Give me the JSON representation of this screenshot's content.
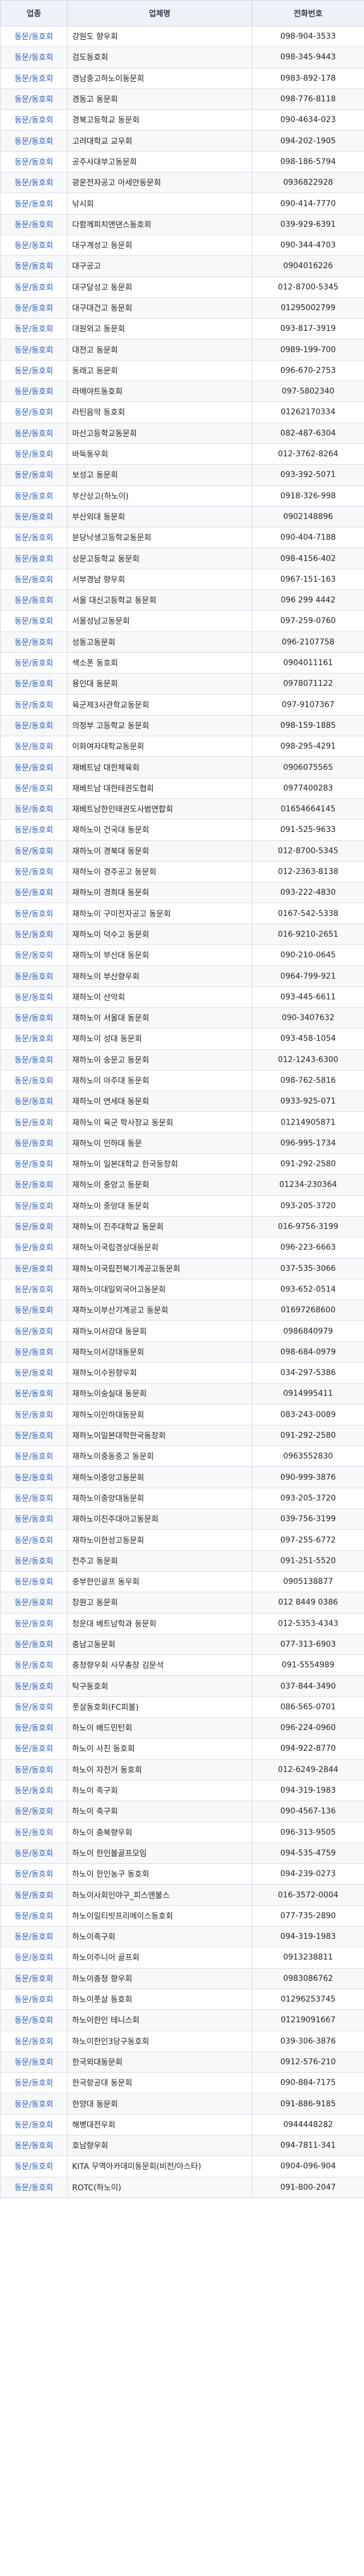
{
  "headers": [
    "업종",
    "업체명",
    "전화번호"
  ],
  "rows": [
    [
      "동문/동호회",
      "강원도 향우회",
      "098-904-3533"
    ],
    [
      "동문/동호회",
      "검도동호회",
      "098-345-9443"
    ],
    [
      "동문/동호회",
      "경남중고하노이동문회",
      "0983-892-178"
    ],
    [
      "동문/동호회",
      "경동고 동문회",
      "098-776-8118"
    ],
    [
      "동문/동호회",
      "경북고등학교 동문회",
      "090-4634-023"
    ],
    [
      "동문/동호회",
      "고려대학교 교우회",
      "094-202-1905"
    ],
    [
      "동문/동호회",
      "공주사대부고동문회",
      "098-186-5794"
    ],
    [
      "동문/동호회",
      "광운전자공고 아세안동문회",
      "0936822928"
    ],
    [
      "동문/동호회",
      "낚시회",
      "090-414-7770"
    ],
    [
      "동문/동호회",
      "다함께피치앤댄스동호회",
      "039-929-6391"
    ],
    [
      "동문/동호회",
      "대구계성고 동문회",
      "090-344-4703"
    ],
    [
      "동문/동호회",
      "대구공고",
      "0904016226"
    ],
    [
      "동문/동호회",
      "대구달성고 동문회",
      "012-8700-5345"
    ],
    [
      "동문/동호회",
      "대구대건고 동문회",
      "01295002799"
    ],
    [
      "동문/동호회",
      "대원외고 동문회",
      "093-817-3919"
    ],
    [
      "동문/동호회",
      "대전고 동문회",
      "0989-199-700"
    ],
    [
      "동문/동호회",
      "동래고 동문회",
      "096-670-2753"
    ],
    [
      "동문/동호회",
      "라메야트동호회",
      "097-5802340"
    ],
    [
      "동문/동호회",
      "라틴음악 동호회",
      "01262170334"
    ],
    [
      "동문/동호회",
      "마산고등학교동문회",
      "082-487-6304"
    ],
    [
      "동문/동호회",
      "바둑동우회",
      "012-3762-8264"
    ],
    [
      "동문/동호회",
      "보성고 동문회",
      "093-392-5071"
    ],
    [
      "동문/동호회",
      "부산상고(하노이)",
      "0918-326-998"
    ],
    [
      "동문/동호회",
      "부산외대 동문회",
      "0902148896"
    ],
    [
      "동문/동호회",
      "분당낙생고등학교동문회",
      "090-404-7188"
    ],
    [
      "동문/동호회",
      "상문고등학교 동문회",
      "098-4156-402"
    ],
    [
      "동문/동호회",
      "서부경남 향우회",
      "0967-151-163"
    ],
    [
      "동문/동호회",
      "서울 대신고등학교 동문회",
      "096 299 4442"
    ],
    [
      "동문/동호회",
      "서울성남고동문회",
      "097-259-0760"
    ],
    [
      "동문/동호회",
      "성동고동문회",
      "096-2107758"
    ],
    [
      "동문/동호회",
      "색소폰 동호회",
      "0904011161"
    ],
    [
      "동문/동호회",
      "용인대 동문회",
      "0978071122"
    ],
    [
      "동문/동호회",
      "육군제3사관학교동문회",
      "097-9107367"
    ],
    [
      "동문/동호회",
      "의정부 고등학교 동문회",
      "098-159-1885"
    ],
    [
      "동문/동호회",
      "이화여자대학교동문회",
      "098-295-4291"
    ],
    [
      "동문/동호회",
      "재베트남 대한체육회",
      "0906075565"
    ],
    [
      "동문/동호회",
      "재베트남 대한태권도협회",
      "0977400283"
    ],
    [
      "동문/동호회",
      "재베트남한인태권도사범연합회",
      "01654664145"
    ],
    [
      "동문/동호회",
      "재하노이 건국대 동문회",
      "091-525-9633"
    ],
    [
      "동문/동호회",
      "재하노이 경북대 동문회",
      "012-8700-5345"
    ],
    [
      "동문/동호회",
      "재하노이 경주공고 동문회",
      "012-2363-8138"
    ],
    [
      "동문/동호회",
      "재하노이 경희대 동문회",
      "093-222-4830"
    ],
    [
      "동문/동호회",
      "재하노이 구미전자공고 동문회",
      "0167-542-5338"
    ],
    [
      "동문/동호회",
      "재하노이 덕수고 동문회",
      "016-9210-2651"
    ],
    [
      "동문/동호회",
      "재하노이 부산대 동문회",
      "090-210-0645"
    ],
    [
      "동문/동호회",
      "재하노이 부산향우회",
      "0964-799-921"
    ],
    [
      "동문/동호회",
      "재하노이 산악회",
      "093-445-6611"
    ],
    [
      "동문/동호회",
      "재하노이 서울대 동문회",
      "090-3407632"
    ],
    [
      "동문/동호회",
      "재하노이 성대 동문회",
      "093-458-1054"
    ],
    [
      "동문/동호회",
      "재하노이 숭문고 동문회",
      "012-1243-6300"
    ],
    [
      "동문/동호회",
      "재하노이 아주대 동문회",
      "098-762-5816"
    ],
    [
      "동문/동호회",
      "재하노이 연세대 동문회",
      "0933-925-071"
    ],
    [
      "동문/동호회",
      "재하노이 육군 학사장교 동문회",
      "01214905871"
    ],
    [
      "동문/동호회",
      "재하노이 인하대 동문",
      "096-995-1734"
    ],
    [
      "동문/동호회",
      "재하노이 일본대학교 한국동창회",
      "091-292-2580"
    ],
    [
      "동문/동호회",
      "재하노이 중앙고 동문회",
      "01234-230364"
    ],
    [
      "동문/동호회",
      "재하노이 중앙대 동문회",
      "093-205-3720"
    ],
    [
      "동문/동호회",
      "재하노이 진주대학교 동문회",
      "016-9756-3199"
    ],
    [
      "동문/동호회",
      "재하노이국립경상대동문회",
      "096-223-6663"
    ],
    [
      "동문/동호회",
      "재하노이국립전북기계공고동문회",
      "037-535-3066"
    ],
    [
      "동문/동호회",
      "재하노이대일외국어고동문회",
      "093-652-0514"
    ],
    [
      "동문/동호회",
      "재하노이부산기계공고 동문회",
      "01697268600"
    ],
    [
      "동문/동호회",
      "재하노이서강대 동문회",
      "0986840979"
    ],
    [
      "동문/동호회",
      "재하노이서강대동문회",
      "098-684-0979"
    ],
    [
      "동문/동호회",
      "재하노이수원향우회",
      "034-297-5386"
    ],
    [
      "동문/동호회",
      "재하노이숭실대 동문회",
      "0914995411"
    ],
    [
      "동문/동호회",
      "재하노이인하대동문회",
      "083-243-0089"
    ],
    [
      "동문/동호회",
      "재하노이일본대학한국동창회",
      "091-292-2580"
    ],
    [
      "동문/동호회",
      "재하노이중동중고 동문회",
      "0963552830"
    ],
    [
      "동문/동호회",
      "재하노이중앙고동문회",
      "090-999-3876"
    ],
    [
      "동문/동호회",
      "재하노이중앙대동문회",
      "093-205-3720"
    ],
    [
      "동문/동호회",
      "재하노이진주대아고동문회",
      "039-756-3199"
    ],
    [
      "동문/동호회",
      "재하노이한성고동문회",
      "097-255-6772"
    ],
    [
      "동문/동호회",
      "전주고 동문회",
      "091-251-5520"
    ],
    [
      "동문/동호회",
      "중부한인골프 동우회",
      "0905138877"
    ],
    [
      "동문/동호회",
      "창원고 동문회",
      "012 8449 0386"
    ],
    [
      "동문/동호회",
      "청운대 베트남학과 동문회",
      "012-5353-4343"
    ],
    [
      "동문/동호회",
      "충남고동문회",
      "077-313-6903"
    ],
    [
      "동문/동호회",
      "충청향우회 사무총장 김문석",
      "091-5554989"
    ],
    [
      "동문/동호회",
      "탁구동호회",
      "037-844-3490"
    ],
    [
      "동문/동호회",
      "풋살동호회(FC피볼)",
      "086-565-0701"
    ],
    [
      "동문/동호회",
      "하노이 배드민턴회",
      "096-224-0960"
    ],
    [
      "동문/동호회",
      "하노이 사진 동호회",
      "094-922-8770"
    ],
    [
      "동문/동호회",
      "하노이 자전거 동호회",
      "012-6249-2844"
    ],
    [
      "동문/동호회",
      "하노이 족구회",
      "094-319-1983"
    ],
    [
      "동문/동호회",
      "하노이 축구회",
      "090-4567-136"
    ],
    [
      "동문/동호회",
      "하노이 충북향우회",
      "096-313-9505"
    ],
    [
      "동문/동호회",
      "하노이 한인볼골프모임",
      "094-535-4759"
    ],
    [
      "동문/동호회",
      "하노이 한인농구 동호회",
      "094-239-0273"
    ],
    [
      "동문/동호회",
      "하노이사회인야구_피스앤불스",
      "016-3572-0004"
    ],
    [
      "동문/동호회",
      "하노이일티빗프리메이스동호회",
      "077-735-2890"
    ],
    [
      "동문/동호회",
      "하노이족구회",
      "094-319-1983"
    ],
    [
      "동문/동호회",
      "하노이주니어 골프회",
      "0913238811"
    ],
    [
      "동문/동호회",
      "하노이충청 향우회",
      "0983086762"
    ],
    [
      "동문/동호회",
      "하노이풋살 동호회",
      "01296253745"
    ],
    [
      "동문/동호회",
      "하노이한인 테니스회",
      "01219091667"
    ],
    [
      "동문/동호회",
      "하노이한인3당구동호회",
      "039-306-3876"
    ],
    [
      "동문/동호회",
      "한국외대동문회",
      "0912-576-210"
    ],
    [
      "동문/동호회",
      "한국항공대 동문회",
      "090-884-7175"
    ],
    [
      "동문/동호회",
      "한양대 동문회",
      "091-886-9185"
    ],
    [
      "동문/동호회",
      "해병대전우회",
      "0944448282"
    ],
    [
      "동문/동호회",
      "호남향우회",
      "094-7811-341"
    ],
    [
      "동문/동호회",
      "KITA 무역아카데미동문회(비전/아스타)",
      "0904-096-904"
    ],
    [
      "동문/동호회",
      "ROTC(하노이)",
      "091-800-2047"
    ]
  ]
}
